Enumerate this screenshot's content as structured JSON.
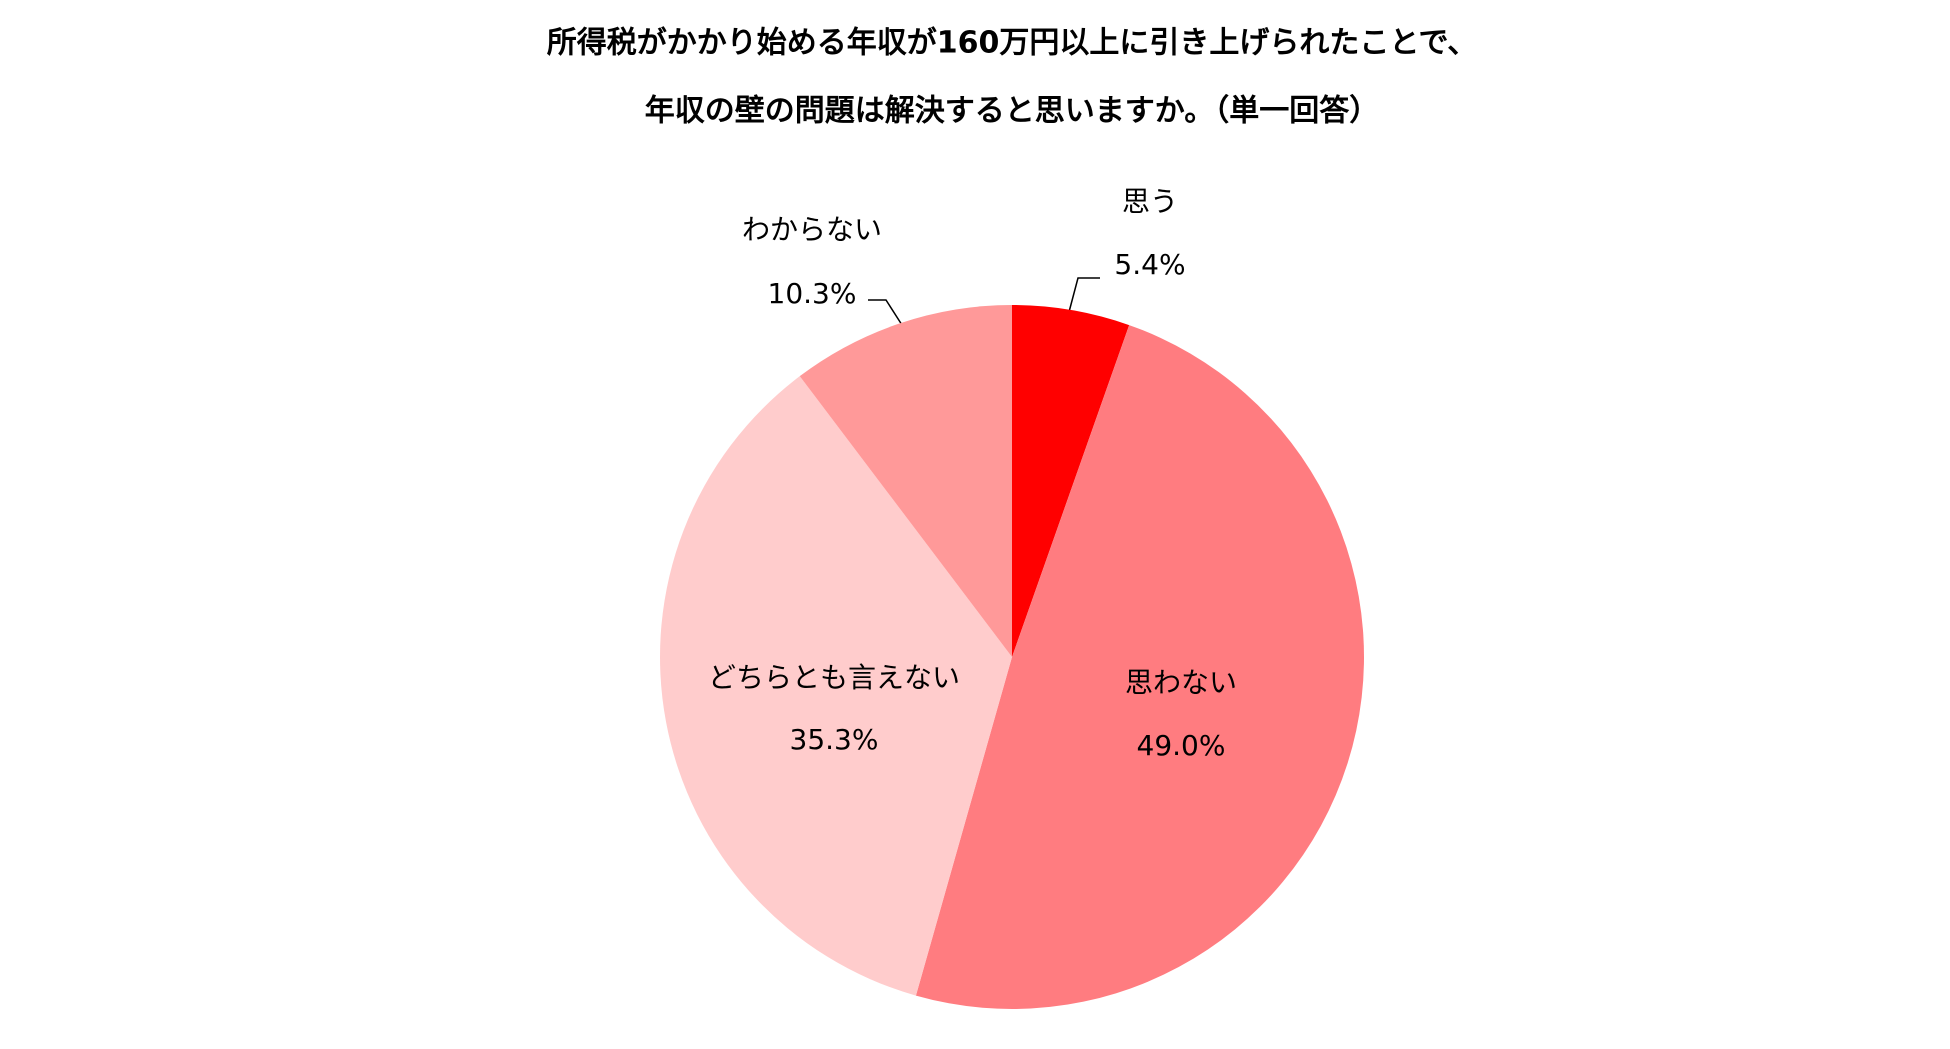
{
  "chart_data": {
    "type": "pie",
    "title": [
      "所得税がかかり始める年収が160万円以上に引き上げられたことで、",
      "年収の壁の問題は解決すると思いますか。（単一回答）"
    ],
    "categories": [
      "思う",
      "思わない",
      "どちらとも言えない",
      "わからない"
    ],
    "values": [
      5.4,
      49.0,
      35.3,
      10.3
    ],
    "value_labels": [
      "5.4%",
      "49.0%",
      "35.3%",
      "10.3%"
    ],
    "colors": [
      "#ff0000",
      "#ff7c80",
      "#ffcccc",
      "#ff9999"
    ]
  }
}
